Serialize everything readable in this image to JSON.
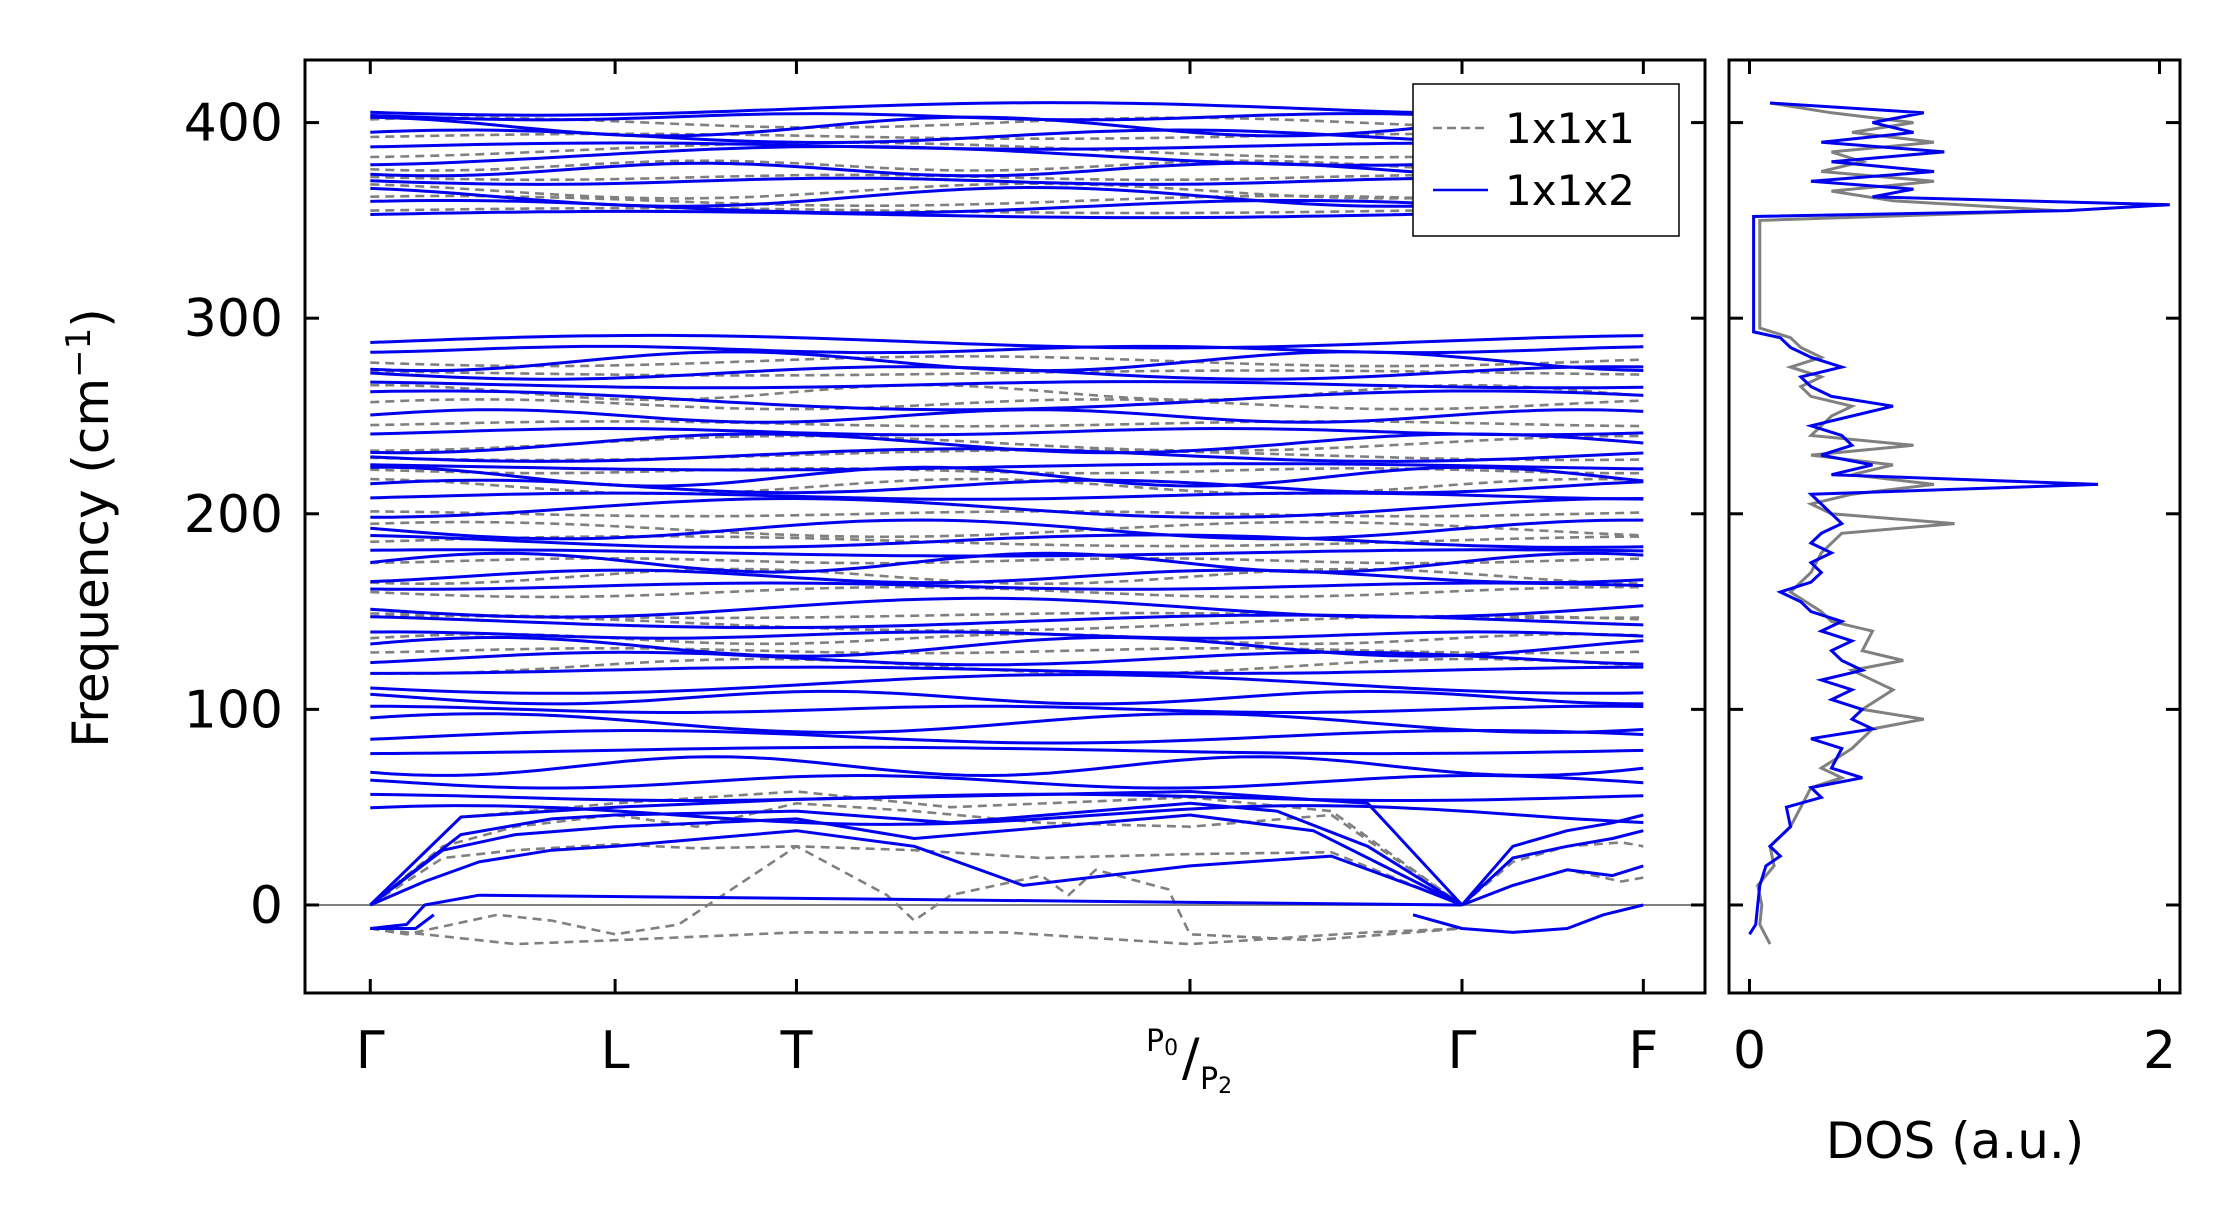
{
  "chart_data": [
    {
      "type": "line",
      "panel": "phonon-band-structure",
      "ylabel": "Frequency (cm",
      "ylabel_sup": "−1",
      "ylabel_close": ")",
      "ylim": [
        -45,
        432
      ],
      "yticks": [
        0,
        100,
        200,
        300,
        400
      ],
      "ytick_labels": [
        "0",
        "100",
        "200",
        "300",
        "400"
      ],
      "xlim": [
        -0.36,
        7.36
      ],
      "kpoints": [
        {
          "label": "Γ",
          "x": 0
        },
        {
          "label": "L",
          "x": 1.35
        },
        {
          "label": "T",
          "x": 2.35
        },
        {
          "label": "P",
          "sub": "0",
          "label2": "P",
          "sub2": "2",
          "x": 4.52
        },
        {
          "label": "Γ",
          "x": 6.02
        },
        {
          "label": "F",
          "x": 7.02
        }
      ],
      "zero_line": true,
      "legend": {
        "placement": "top-right",
        "entries": [
          {
            "label": "1x1x1",
            "style": "dashed",
            "color": "#808080"
          },
          {
            "label": "1x1x2",
            "style": "solid",
            "color": "#0000ee"
          }
        ]
      },
      "series": [
        {
          "name": "1x1x1",
          "color": "#808080",
          "style": "dashed",
          "optical_levels": [
            355,
            360,
            365,
            372,
            378,
            386,
            393,
            400,
            214,
            222,
            230,
            236,
            246,
            256,
            262,
            272,
            278,
            122,
            130,
            136,
            144,
            148,
            160,
            168,
            176,
            186,
            192,
            200
          ],
          "acoustic_branches": [
            {
              "x": [
                0,
                0.4,
                0.8,
                1.35,
                1.8,
                2.35,
                3.0,
                3.7,
                4.52,
                5.3,
                6.02
              ],
              "y": [
                0,
                24,
                28,
                31,
                29,
                30,
                28,
                24,
                26,
                27,
                0
              ]
            },
            {
              "x": [
                0,
                0.4,
                0.8,
                1.35,
                1.8,
                2.35,
                3.0,
                3.7,
                4.52,
                5.3,
                6.02
              ],
              "y": [
                0,
                30,
                40,
                46,
                40,
                52,
                48,
                42,
                40,
                46,
                0
              ]
            },
            {
              "x": [
                0,
                0.5,
                1.35,
                2.35,
                3.2,
                4.52,
                5.3,
                6.02
              ],
              "y": [
                0,
                45,
                52,
                58,
                50,
                55,
                48,
                0
              ]
            },
            {
              "x": [
                0,
                0.2,
                0.7,
                1.0,
                1.35,
                1.7,
                2.35,
                2.85,
                3.0,
                3.2,
                3.7,
                3.85,
                4.0,
                4.4,
                4.52,
                5.2,
                6.02
              ],
              "y": [
                -12,
                -15,
                -5,
                -8,
                -15,
                -10,
                30,
                5,
                -8,
                5,
                15,
                5,
                18,
                8,
                -15,
                -18,
                -12
              ]
            },
            {
              "x": [
                0,
                0.8,
                1.35,
                2.35,
                3.5,
                4.52,
                5.5,
                6.02
              ],
              "y": [
                -12,
                -20,
                -18,
                -14,
                -14,
                -20,
                -14,
                -12
              ]
            },
            {
              "x": [
                6.02,
                6.3,
                6.6,
                6.9,
                7.02
              ],
              "y": [
                0,
                10,
                18,
                12,
                14
              ]
            },
            {
              "x": [
                6.02,
                6.3,
                6.6,
                6.9,
                7.02
              ],
              "y": [
                0,
                22,
                30,
                32,
                30
              ]
            }
          ]
        },
        {
          "name": "1x1x2",
          "color": "#0000ee",
          "style": "solid",
          "optical_levels": [
            353,
            357,
            362,
            370,
            376,
            383,
            388,
            393,
            398,
            403,
            407,
            203,
            209,
            214,
            219,
            224,
            230,
            236,
            242,
            250,
            258,
            266,
            272,
            278,
            284,
            288,
            46,
            55,
            63,
            71,
            79,
            86,
            93,
            100,
            106,
            113,
            120,
            126,
            132,
            138,
            145,
            152,
            163,
            168,
            175,
            180,
            186,
            192
          ],
          "acoustic_branches": [
            {
              "x": [
                0,
                0.3,
                0.6,
                1.0,
                1.35,
                2.35,
                3.0,
                3.6,
                4.52,
                5.3,
                5.8,
                6.02
              ],
              "y": [
                0,
                12,
                22,
                28,
                30,
                38,
                30,
                10,
                20,
                25,
                8,
                0
              ]
            },
            {
              "x": [
                0,
                0.4,
                0.8,
                1.35,
                2.35,
                3.0,
                4.52,
                5.2,
                6.02
              ],
              "y": [
                0,
                28,
                36,
                40,
                44,
                34,
                46,
                38,
                0
              ]
            },
            {
              "x": [
                0,
                0.5,
                1.0,
                1.35,
                2.35,
                3.2,
                4.52,
                5.0,
                5.5,
                6.02
              ],
              "y": [
                0,
                36,
                44,
                46,
                48,
                42,
                52,
                48,
                30,
                0
              ]
            },
            {
              "x": [
                0,
                0.5,
                1.0,
                1.35,
                2.35,
                4.52,
                5.5,
                6.02
              ],
              "y": [
                0,
                45,
                48,
                50,
                54,
                58,
                52,
                0
              ]
            },
            {
              "x": [
                0,
                0.2,
                0.3,
                0.6,
                6.02
              ],
              "y": [
                -12,
                -10,
                0,
                5,
                0
              ]
            },
            {
              "x": [
                0,
                0.25,
                0.35
              ],
              "y": [
                -12,
                -12,
                -5
              ]
            },
            {
              "x": [
                5.75,
                6.02,
                6.3,
                6.6,
                6.8,
                7.02
              ],
              "y": [
                -5,
                -12,
                -14,
                -12,
                -5,
                0
              ]
            },
            {
              "x": [
                6.02,
                6.3,
                6.6,
                6.85,
                7.02
              ],
              "y": [
                0,
                10,
                18,
                15,
                20
              ]
            },
            {
              "x": [
                6.02,
                6.3,
                6.6,
                6.85,
                7.02
              ],
              "y": [
                0,
                24,
                30,
                34,
                38
              ]
            },
            {
              "x": [
                6.02,
                6.3,
                6.6,
                6.85,
                7.02
              ],
              "y": [
                0,
                30,
                38,
                42,
                46
              ]
            }
          ]
        }
      ]
    },
    {
      "type": "line",
      "panel": "density-of-states",
      "xlabel": "DOS (a.u.)",
      "xlim": [
        -0.1,
        2.1
      ],
      "xticks": [
        0,
        2
      ],
      "xtick_labels": [
        "0",
        "2"
      ],
      "ylim": [
        -45,
        432
      ],
      "series": [
        {
          "name": "1x1x1",
          "color": "#808080",
          "points": [
            [
              -20,
              0.1
            ],
            [
              -10,
              0.05
            ],
            [
              0,
              0.06
            ],
            [
              10,
              0.04
            ],
            [
              20,
              0.12
            ],
            [
              30,
              0.1
            ],
            [
              40,
              0.2
            ],
            [
              50,
              0.25
            ],
            [
              60,
              0.3
            ],
            [
              65,
              0.45
            ],
            [
              70,
              0.35
            ],
            [
              80,
              0.5
            ],
            [
              90,
              0.6
            ],
            [
              95,
              0.85
            ],
            [
              100,
              0.55
            ],
            [
              110,
              0.7
            ],
            [
              120,
              0.5
            ],
            [
              125,
              0.75
            ],
            [
              130,
              0.55
            ],
            [
              140,
              0.6
            ],
            [
              145,
              0.4
            ],
            [
              150,
              0.35
            ],
            [
              160,
              0.2
            ],
            [
              170,
              0.3
            ],
            [
              180,
              0.35
            ],
            [
              190,
              0.45
            ],
            [
              195,
              1.0
            ],
            [
              200,
              0.4
            ],
            [
              205,
              0.3
            ],
            [
              210,
              0.5
            ],
            [
              215,
              0.9
            ],
            [
              220,
              0.5
            ],
            [
              225,
              0.7
            ],
            [
              230,
              0.3
            ],
            [
              235,
              0.8
            ],
            [
              240,
              0.3
            ],
            [
              245,
              0.35
            ],
            [
              250,
              0.4
            ],
            [
              255,
              0.5
            ],
            [
              260,
              0.3
            ],
            [
              265,
              0.25
            ],
            [
              270,
              0.35
            ],
            [
              275,
              0.2
            ],
            [
              280,
              0.35
            ],
            [
              285,
              0.25
            ],
            [
              290,
              0.2
            ],
            [
              295,
              0.05
            ],
            [
              300,
              0.05
            ],
            [
              350,
              0.05
            ],
            [
              355,
              1.5
            ],
            [
              360,
              0.7
            ],
            [
              365,
              0.4
            ],
            [
              370,
              0.9
            ],
            [
              375,
              0.35
            ],
            [
              380,
              0.55
            ],
            [
              385,
              0.4
            ],
            [
              390,
              0.9
            ],
            [
              395,
              0.5
            ],
            [
              400,
              0.8
            ],
            [
              405,
              0.4
            ],
            [
              410,
              0.1
            ]
          ]
        },
        {
          "name": "1x1x2",
          "color": "#0000ee",
          "points": [
            [
              -15,
              0.0
            ],
            [
              -10,
              0.03
            ],
            [
              0,
              0.04
            ],
            [
              10,
              0.05
            ],
            [
              20,
              0.08
            ],
            [
              25,
              0.15
            ],
            [
              30,
              0.1
            ],
            [
              40,
              0.2
            ],
            [
              50,
              0.18
            ],
            [
              55,
              0.35
            ],
            [
              60,
              0.3
            ],
            [
              65,
              0.55
            ],
            [
              70,
              0.4
            ],
            [
              80,
              0.45
            ],
            [
              85,
              0.3
            ],
            [
              90,
              0.6
            ],
            [
              95,
              0.5
            ],
            [
              100,
              0.55
            ],
            [
              105,
              0.4
            ],
            [
              110,
              0.5
            ],
            [
              115,
              0.35
            ],
            [
              120,
              0.55
            ],
            [
              125,
              0.45
            ],
            [
              130,
              0.4
            ],
            [
              135,
              0.5
            ],
            [
              140,
              0.35
            ],
            [
              145,
              0.45
            ],
            [
              150,
              0.3
            ],
            [
              155,
              0.25
            ],
            [
              160,
              0.15
            ],
            [
              165,
              0.3
            ],
            [
              170,
              0.35
            ],
            [
              175,
              0.3
            ],
            [
              180,
              0.4
            ],
            [
              185,
              0.3
            ],
            [
              190,
              0.35
            ],
            [
              195,
              0.45
            ],
            [
              200,
              0.4
            ],
            [
              205,
              0.35
            ],
            [
              210,
              0.3
            ],
            [
              215,
              1.7
            ],
            [
              220,
              0.4
            ],
            [
              225,
              0.6
            ],
            [
              230,
              0.35
            ],
            [
              235,
              0.5
            ],
            [
              240,
              0.45
            ],
            [
              245,
              0.3
            ],
            [
              250,
              0.5
            ],
            [
              255,
              0.7
            ],
            [
              260,
              0.4
            ],
            [
              265,
              0.3
            ],
            [
              270,
              0.25
            ],
            [
              275,
              0.45
            ],
            [
              280,
              0.3
            ],
            [
              285,
              0.2
            ],
            [
              290,
              0.15
            ],
            [
              293,
              0.02
            ],
            [
              300,
              0.02
            ],
            [
              352,
              0.02
            ],
            [
              355,
              1.55
            ],
            [
              358,
              2.05
            ],
            [
              362,
              0.6
            ],
            [
              366,
              0.8
            ],
            [
              370,
              0.3
            ],
            [
              375,
              0.9
            ],
            [
              380,
              0.4
            ],
            [
              385,
              0.95
            ],
            [
              390,
              0.35
            ],
            [
              395,
              0.8
            ],
            [
              400,
              0.6
            ],
            [
              405,
              0.85
            ],
            [
              410,
              0.1
            ]
          ]
        }
      ]
    }
  ]
}
